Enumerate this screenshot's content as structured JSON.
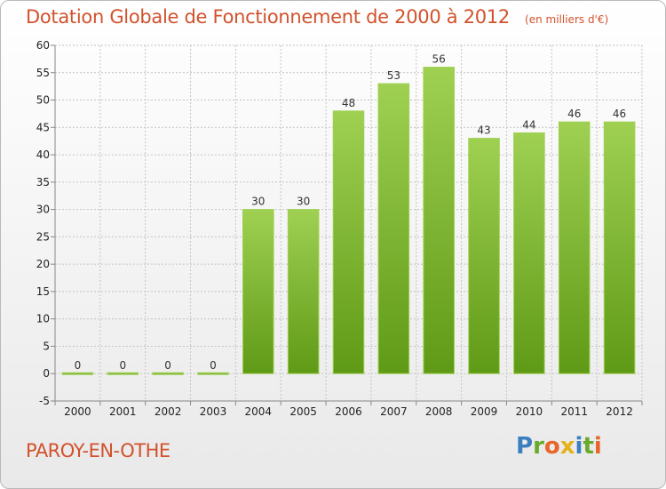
{
  "title": "Dotation Globale de Fonctionnement de 2000 à 2012",
  "subtitle": "(en milliers d'€)",
  "commune": "PAROY-EN-OTHE",
  "logo": {
    "letters": [
      "P",
      "r",
      "o",
      "x",
      "i",
      "t",
      "i"
    ]
  },
  "colors": {
    "bar_light": "#9fd052",
    "bar_dark": "#5f9a16",
    "title": "#d1522c"
  },
  "chart_data": {
    "type": "bar",
    "title": "Dotation Globale de Fonctionnement de 2000 à 2012",
    "subtitle": "(en milliers d'€)",
    "categories": [
      "2000",
      "2001",
      "2002",
      "2003",
      "2004",
      "2005",
      "2006",
      "2007",
      "2008",
      "2009",
      "2010",
      "2011",
      "2012"
    ],
    "values": [
      0,
      0,
      0,
      0,
      30,
      30,
      48,
      53,
      56,
      43,
      44,
      46,
      46
    ],
    "data_labels": [
      "0",
      "0",
      "0",
      "0",
      "30",
      "30",
      "48",
      "53",
      "56",
      "43",
      "44",
      "46",
      "46"
    ],
    "yticks": [
      "-5",
      "0",
      "5",
      "10",
      "15",
      "20",
      "25",
      "30",
      "35",
      "40",
      "45",
      "50",
      "55",
      "60"
    ],
    "ylim": [
      -5,
      60
    ],
    "xlabel": "",
    "ylabel": "",
    "grid": true,
    "legend": "none"
  }
}
